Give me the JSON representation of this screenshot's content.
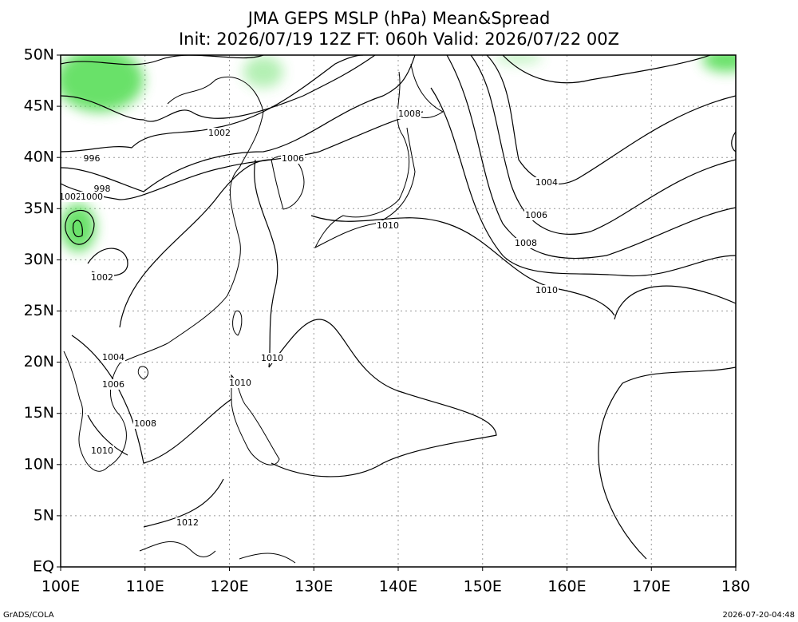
{
  "header": {
    "title": "JMA GEPS MSLP (hPa) Mean&Spread",
    "subtitle": "Init: 2026/07/19 12Z  FT: 060h  Valid: 2026/07/22 00Z"
  },
  "map": {
    "lat_labels": [
      "50N",
      "45N",
      "40N",
      "35N",
      "30N",
      "25N",
      "20N",
      "15N",
      "10N",
      "5N",
      "EQ"
    ],
    "lon_labels": [
      "100E",
      "110E",
      "120E",
      "130E",
      "140E",
      "150E",
      "160E",
      "170E",
      "180"
    ],
    "contour_labels": [
      "1002",
      "996",
      "998",
      "1002",
      "1000",
      "1002",
      "1006",
      "1008",
      "1010",
      "1004",
      "1006",
      "1008",
      "1010",
      "1004",
      "1006",
      "1010",
      "1010",
      "1008",
      "1010",
      "1012"
    ]
  },
  "footer": {
    "left": "GrADS/COLA",
    "right": "2026-07-20-04:48"
  }
}
